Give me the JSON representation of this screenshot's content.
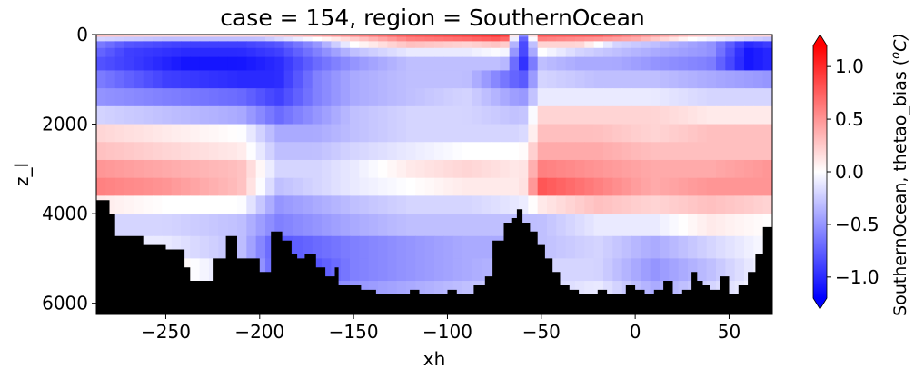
{
  "chart_data": {
    "type": "heatmap",
    "title": "case = 154, region = SouthernOcean",
    "xlabel": "xh",
    "ylabel": "z_l",
    "xlim": [
      -287,
      73
    ],
    "ylim": [
      6250,
      0
    ],
    "y_inverted": true,
    "x_ticks": [
      -250,
      -200,
      -150,
      -100,
      -50,
      0,
      50
    ],
    "x_tick_labels": [
      "−250",
      "−200",
      "−150",
      "−100",
      "−50",
      "0",
      "50"
    ],
    "y_ticks": [
      0,
      2000,
      4000,
      6000
    ],
    "y_tick_labels": [
      "0",
      "2000",
      "4000",
      "6000"
    ],
    "colorbar": {
      "label": "SouthernOcean, thetao_bias (ᵒC)",
      "label_main": "SouthernOcean, thetao_bias (",
      "label_sup": "o",
      "label_unit": "C)",
      "vmin": -1.2,
      "vmax": 1.2,
      "extend": "both",
      "ticks": [
        -1.0,
        -0.5,
        0.0,
        0.5,
        1.0
      ],
      "tick_labels": [
        "−1.0",
        "−0.5",
        "0.0",
        "0.5",
        "1.0"
      ],
      "colormap": "bwr",
      "colors": [
        "#0000ff",
        "#ffffff",
        "#ff0000"
      ]
    },
    "land_color": "#000000",
    "depth_levels": [
      0,
      50,
      150,
      300,
      500,
      800,
      1200,
      1600,
      2000,
      2400,
      2800,
      3200,
      3600,
      4000,
      4500,
      5000,
      5500,
      6000,
      6250
    ],
    "bias_rows": [
      {
        "depth": 25,
        "x": [
          -287,
          -250,
          -200,
          -160,
          -120,
          -90,
          -70,
          -60,
          -50,
          -20,
          0,
          30,
          73
        ],
        "v": [
          0.3,
          0.2,
          0.2,
          0.5,
          0.8,
          0.9,
          1.0,
          -0.6,
          0.8,
          0.8,
          0.6,
          0.3,
          0.2
        ]
      },
      {
        "depth": 100,
        "x": [
          -287,
          -250,
          -200,
          -160,
          -120,
          -90,
          -70,
          -60,
          -50,
          -20,
          0,
          30,
          73
        ],
        "v": [
          -0.2,
          -0.3,
          -0.3,
          0.1,
          0.6,
          0.7,
          0.8,
          -0.8,
          0.6,
          0.5,
          0.4,
          0.0,
          -0.3
        ]
      },
      {
        "depth": 225,
        "x": [
          -287,
          -270,
          -240,
          -210,
          -190,
          -170,
          -150,
          -120,
          -90,
          -70,
          -60,
          -50,
          -30,
          -10,
          10,
          40,
          60,
          73
        ],
        "v": [
          -0.6,
          -0.8,
          -0.9,
          -0.9,
          -0.8,
          -0.5,
          0.0,
          0.3,
          0.2,
          0.3,
          -0.9,
          0.2,
          0.2,
          -0.2,
          -0.3,
          -0.5,
          -1.0,
          -0.9
        ]
      },
      {
        "depth": 400,
        "x": [
          -287,
          -270,
          -240,
          -210,
          -190,
          -170,
          -150,
          -120,
          -90,
          -70,
          -60,
          -50,
          -30,
          -10,
          10,
          40,
          60,
          73
        ],
        "v": [
          -0.7,
          -0.9,
          -1.0,
          -1.0,
          -0.9,
          -0.6,
          -0.3,
          -0.1,
          -0.1,
          0.0,
          -0.9,
          0.0,
          -0.2,
          -0.3,
          -0.4,
          -0.5,
          -1.1,
          -1.0
        ]
      },
      {
        "depth": 650,
        "x": [
          -287,
          -270,
          -240,
          -210,
          -190,
          -170,
          -150,
          -120,
          -90,
          -70,
          -60,
          -50,
          -30,
          -10,
          10,
          40,
          60,
          73
        ],
        "v": [
          -0.8,
          -0.9,
          -1.1,
          -1.1,
          -1.0,
          -0.7,
          -0.5,
          -0.3,
          -0.3,
          -0.3,
          -1.0,
          -0.3,
          -0.4,
          -0.4,
          -0.5,
          -0.6,
          -1.1,
          -1.0
        ]
      },
      {
        "depth": 1000,
        "x": [
          -287,
          -250,
          -210,
          -190,
          -170,
          -150,
          -120,
          -90,
          -60,
          -50,
          -20,
          10,
          40,
          73
        ],
        "v": [
          -0.6,
          -0.9,
          -1.0,
          -1.0,
          -0.6,
          -0.4,
          -0.3,
          -0.3,
          -0.8,
          -0.2,
          -0.3,
          -0.3,
          -0.4,
          -0.5
        ]
      },
      {
        "depth": 1400,
        "x": [
          -287,
          -250,
          -210,
          -190,
          -170,
          -150,
          -120,
          -90,
          -60,
          -50,
          -20,
          10,
          40,
          73
        ],
        "v": [
          -0.5,
          -0.6,
          -0.7,
          -0.9,
          -0.6,
          -0.4,
          -0.3,
          -0.2,
          -0.5,
          -0.1,
          -0.1,
          -0.1,
          -0.2,
          -0.2
        ]
      },
      {
        "depth": 1800,
        "x": [
          -287,
          -250,
          -210,
          -190,
          -170,
          -150,
          -120,
          -90,
          -60,
          -50,
          -20,
          10,
          40,
          73
        ],
        "v": [
          -0.2,
          -0.3,
          -0.4,
          -0.7,
          -0.5,
          -0.3,
          -0.2,
          -0.2,
          -0.3,
          0.2,
          0.2,
          0.2,
          0.1,
          0.1
        ]
      },
      {
        "depth": 2200,
        "x": [
          -287,
          -250,
          -210,
          -190,
          -170,
          -150,
          -120,
          -90,
          -60,
          -50,
          -20,
          10,
          40,
          73
        ],
        "v": [
          0.2,
          0.1,
          0.0,
          -0.4,
          -0.4,
          -0.3,
          -0.2,
          -0.2,
          -0.2,
          0.3,
          0.3,
          0.2,
          0.3,
          0.3
        ]
      },
      {
        "depth": 2600,
        "x": [
          -287,
          -250,
          -210,
          -190,
          -170,
          -150,
          -120,
          -90,
          -60,
          -50,
          -20,
          10,
          40,
          73
        ],
        "v": [
          0.3,
          0.2,
          0.1,
          -0.3,
          -0.3,
          -0.2,
          -0.1,
          0.0,
          0.0,
          0.4,
          0.4,
          0.3,
          0.3,
          0.3
        ]
      },
      {
        "depth": 3000,
        "x": [
          -287,
          -250,
          -210,
          -190,
          -170,
          -150,
          -120,
          -90,
          -60,
          -50,
          -20,
          10,
          40,
          73
        ],
        "v": [
          0.5,
          0.4,
          0.3,
          -0.2,
          -0.2,
          -0.1,
          0.1,
          0.2,
          0.1,
          0.6,
          0.5,
          0.4,
          0.4,
          0.5
        ]
      },
      {
        "depth": 3400,
        "x": [
          -287,
          -250,
          -210,
          -190,
          -170,
          -150,
          -120,
          -90,
          -60,
          -50,
          -20,
          10,
          40,
          73
        ],
        "v": [
          0.6,
          0.5,
          0.3,
          -0.3,
          -0.2,
          -0.1,
          0.0,
          0.1,
          0.1,
          0.8,
          0.6,
          0.4,
          0.5,
          0.5
        ]
      },
      {
        "depth": 3800,
        "x": [
          -287,
          -250,
          -210,
          -190,
          -170,
          -150,
          -120,
          -90,
          -60,
          -50,
          -20,
          10,
          40,
          73
        ],
        "v": [
          0.1,
          0.0,
          0.0,
          -0.5,
          -0.4,
          -0.3,
          -0.2,
          -0.2,
          -0.1,
          0.1,
          0.3,
          0.2,
          0.3,
          0.2
        ]
      },
      {
        "depth": 4250,
        "x": [
          -287,
          -250,
          -210,
          -190,
          -170,
          -150,
          -120,
          -90,
          -60,
          -50,
          -20,
          10,
          40,
          73
        ],
        "v": [
          -0.2,
          -0.2,
          -0.3,
          -0.6,
          -0.5,
          -0.4,
          -0.3,
          -0.3,
          -0.3,
          -0.3,
          -0.1,
          -0.1,
          0.1,
          0.0
        ]
      },
      {
        "depth": 4750,
        "x": [
          -287,
          -250,
          -210,
          -190,
          -170,
          -150,
          -120,
          -90,
          -60,
          -50,
          -20,
          10,
          40,
          73
        ],
        "v": [
          -0.1,
          -0.1,
          -0.3,
          -0.8,
          -0.7,
          -0.6,
          -0.5,
          -0.4,
          -0.4,
          -0.3,
          -0.2,
          -0.4,
          -0.2,
          0.0
        ]
      },
      {
        "depth": 5250,
        "x": [
          -287,
          -250,
          -210,
          -190,
          -170,
          -150,
          -120,
          -90,
          -60,
          -50,
          -20,
          10,
          40,
          73
        ],
        "v": [
          0.1,
          0.1,
          -0.2,
          -0.8,
          -0.8,
          -0.6,
          -0.5,
          -0.4,
          -0.3,
          -0.2,
          -0.2,
          -0.5,
          -0.3,
          0.0
        ]
      },
      {
        "depth": 5750,
        "x": [
          -287,
          -250,
          -210,
          -190,
          -170,
          -150,
          -120,
          -90,
          -60,
          -50,
          -20,
          10,
          40,
          73
        ],
        "v": [
          0.1,
          0.1,
          -0.2,
          -0.5,
          -0.6,
          -0.5,
          -0.4,
          -0.3,
          -0.2,
          -0.2,
          -0.1,
          -0.4,
          -0.2,
          0.0
        ]
      },
      {
        "depth": 6125,
        "x": [
          -287,
          73
        ],
        "v": [
          0.0,
          0.0
        ]
      }
    ],
    "bathymetry_depth": {
      "x": [
        -287,
        -284,
        -280,
        -277,
        -275,
        -270,
        -262,
        -250,
        -240,
        -237,
        -232,
        -225,
        -218,
        -212,
        -200,
        -194,
        -188,
        -183,
        -180,
        -176,
        -170,
        -165,
        -160,
        -158,
        -150,
        -146,
        -142,
        -138,
        -130,
        -120,
        -115,
        -110,
        -100,
        -95,
        -86,
        -80,
        -76,
        -70,
        -66,
        -63,
        -60,
        -56,
        -52,
        -48,
        -44,
        -40,
        -35,
        -30,
        -25,
        -20,
        -15,
        -10,
        -5,
        0,
        5,
        10,
        15,
        20,
        25,
        30,
        33,
        36,
        40,
        45,
        50,
        55,
        60,
        64,
        68,
        72
      ],
      "d": [
        3700,
        3700,
        4000,
        4500,
        4500,
        4500,
        4700,
        4800,
        5200,
        5500,
        5500,
        5000,
        4500,
        5000,
        5300,
        4400,
        4600,
        4900,
        5000,
        4900,
        5200,
        5400,
        5200,
        5600,
        5600,
        5700,
        5700,
        5800,
        5800,
        5700,
        5800,
        5800,
        5700,
        5800,
        5600,
        5400,
        4600,
        4200,
        4100,
        3900,
        4200,
        4400,
        4700,
        5000,
        5300,
        5600,
        5700,
        5800,
        5800,
        5700,
        5800,
        5800,
        5600,
        5700,
        5800,
        5700,
        5500,
        5800,
        5700,
        5300,
        5500,
        5600,
        5700,
        5400,
        5800,
        5600,
        5300,
        4900,
        4300,
        4300
      ]
    }
  }
}
